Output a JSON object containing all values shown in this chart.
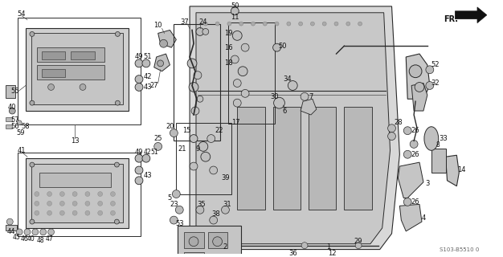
{
  "bg_color": "#ffffff",
  "dc": "#2a2a2a",
  "part_number_code": "S103-B5510 0",
  "fr_label": "FR.",
  "fig_size": [
    6.26,
    3.2
  ],
  "dpi": 100
}
